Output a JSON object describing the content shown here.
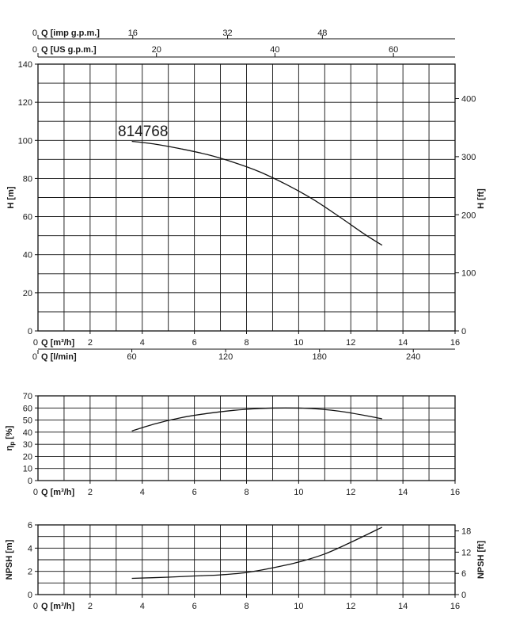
{
  "model": "814768",
  "colors": {
    "grid": "#111111",
    "curve": "#111111",
    "text": "#1a1a1a",
    "background": "#ffffff"
  },
  "top_scales": [
    {
      "label": "Q [imp g.p.m.]",
      "zero": "0",
      "ticks": [
        "16",
        "32",
        "48"
      ],
      "tick_values": [
        16,
        32,
        48
      ],
      "max": 70.4
    },
    {
      "label": "Q [US g.p.m.]",
      "zero": "0",
      "ticks": [
        "20",
        "40",
        "60"
      ],
      "tick_values": [
        20,
        40,
        60
      ],
      "max": 70.4
    }
  ],
  "chart_data": [
    {
      "type": "line",
      "name": "head",
      "xlabel": "Q [m³/h]",
      "ylabel": "H [m]",
      "y2label": "H [ft]",
      "xlim": [
        0,
        16
      ],
      "ylim": [
        0,
        140
      ],
      "y2lim": [
        0,
        459.3
      ],
      "x_ticks": [
        "0",
        "2",
        "4",
        "6",
        "8",
        "10",
        "12",
        "14",
        "16"
      ],
      "y_ticks": [
        "0",
        "20",
        "40",
        "60",
        "80",
        "100",
        "120",
        "140"
      ],
      "y2_ticks": [
        "0",
        "100",
        "200",
        "300",
        "400"
      ],
      "secondary_x": {
        "label": "Q [l/min]",
        "zero": "0",
        "ticks": [
          "60",
          "120",
          "180",
          "240"
        ],
        "max": 266.7
      },
      "grid": true,
      "series": [
        {
          "x": [
            3.6,
            4.5,
            5.5,
            6.5,
            7.5,
            8.5,
            9.5,
            10.5,
            11.5,
            12.5,
            13.2
          ],
          "y": [
            99.5,
            98,
            95.5,
            92.5,
            88.5,
            83.5,
            77,
            69.5,
            60.5,
            51,
            45
          ]
        }
      ]
    },
    {
      "type": "line",
      "name": "efficiency",
      "xlabel": "Q [m³/h]",
      "ylabel": "η [%]",
      "ylabel_sub": "p",
      "xlim": [
        0,
        16
      ],
      "ylim": [
        0,
        70
      ],
      "x_ticks": [
        "0",
        "2",
        "4",
        "6",
        "8",
        "10",
        "12",
        "14",
        "16"
      ],
      "y_ticks": [
        "0",
        "10",
        "20",
        "30",
        "40",
        "50",
        "60",
        "70"
      ],
      "grid": true,
      "series": [
        {
          "x": [
            3.6,
            4.5,
            5.5,
            6.5,
            7.5,
            8.5,
            9.5,
            10.5,
            11.5,
            12.5,
            13.2
          ],
          "y": [
            41,
            47,
            52,
            55.5,
            58,
            59.5,
            60,
            59.5,
            57.5,
            54,
            51
          ]
        }
      ]
    },
    {
      "type": "line",
      "name": "npsh",
      "xlabel": "Q [m³/h]",
      "ylabel": "NPSH [m]",
      "y2label": "NPSH [ft]",
      "xlim": [
        0,
        16
      ],
      "ylim": [
        0,
        6
      ],
      "y2lim": [
        0,
        19.7
      ],
      "x_ticks": [
        "0",
        "2",
        "4",
        "6",
        "8",
        "10",
        "12",
        "14",
        "16"
      ],
      "y_ticks": [
        "0",
        "2",
        "4",
        "6"
      ],
      "y2_ticks": [
        "0",
        "6",
        "12",
        "18"
      ],
      "grid": true,
      "series": [
        {
          "x": [
            3.6,
            5,
            6,
            7,
            8,
            9,
            10,
            11,
            12,
            13.2
          ],
          "y": [
            1.4,
            1.5,
            1.6,
            1.7,
            1.9,
            2.3,
            2.8,
            3.5,
            4.5,
            5.8
          ]
        }
      ]
    }
  ]
}
